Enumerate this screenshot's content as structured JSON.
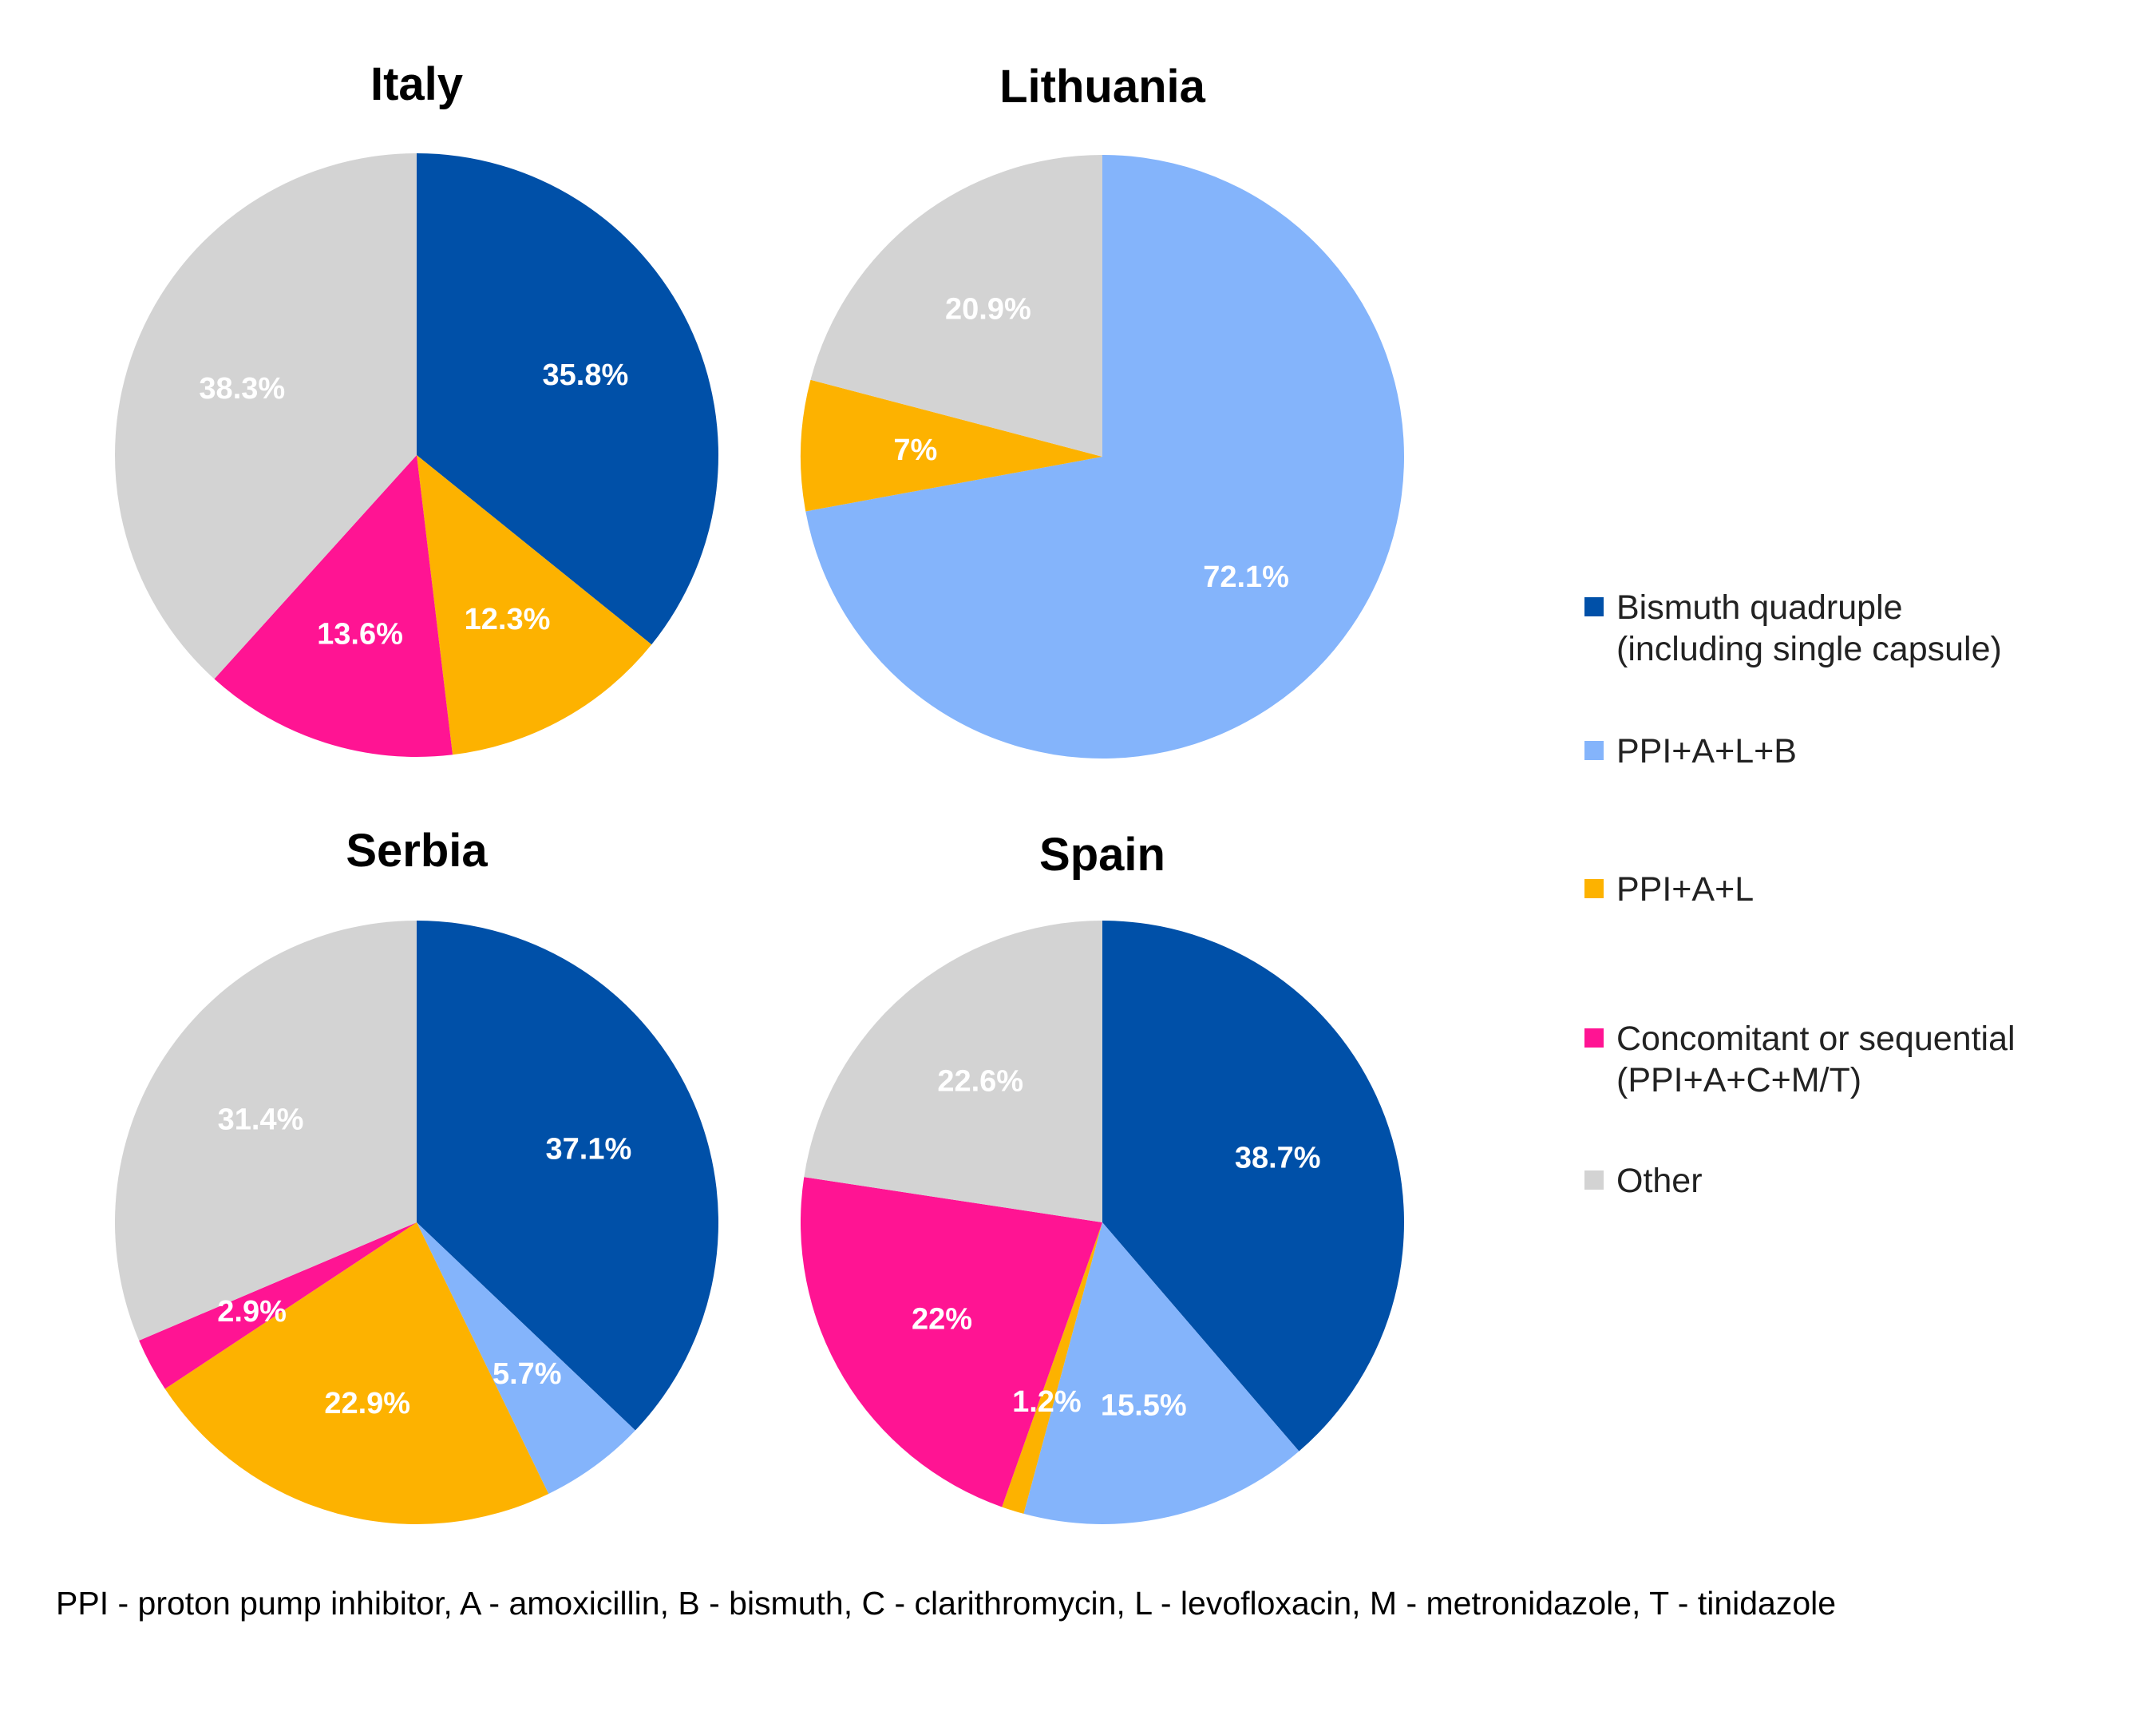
{
  "colors": {
    "Bismuth quadruple": "#0050a8",
    "PPI+A+L+B": "#84b4fb",
    "PPI+A+L": "#fdb200",
    "Concomitant or sequential": "#ff1493",
    "Other": "#d3d3d3"
  },
  "chart_data": [
    {
      "type": "pie",
      "title": "Italy",
      "slices": [
        {
          "category": "Bismuth quadruple",
          "value": 35.8,
          "label": "35.8%"
        },
        {
          "category": "PPI+A+L",
          "value": 12.3,
          "label": "12.3%"
        },
        {
          "category": "Concomitant or sequential",
          "value": 13.6,
          "label": "13.6%"
        },
        {
          "category": "Other",
          "value": 38.3,
          "label": "38.3%"
        }
      ]
    },
    {
      "type": "pie",
      "title": "Lithuania",
      "slices": [
        {
          "category": "PPI+A+L+B",
          "value": 72.1,
          "label": "72.1%"
        },
        {
          "category": "PPI+A+L",
          "value": 7,
          "label": "7%"
        },
        {
          "category": "Other",
          "value": 20.9,
          "label": "20.9%"
        }
      ]
    },
    {
      "type": "pie",
      "title": "Serbia",
      "slices": [
        {
          "category": "Bismuth quadruple",
          "value": 37.1,
          "label": "37.1%"
        },
        {
          "category": "PPI+A+L+B",
          "value": 5.7,
          "label": "5.7%"
        },
        {
          "category": "PPI+A+L",
          "value": 22.9,
          "label": "22.9%"
        },
        {
          "category": "Concomitant or sequential",
          "value": 2.9,
          "label": "2.9%"
        },
        {
          "category": "Other",
          "value": 31.4,
          "label": "31.4%"
        }
      ]
    },
    {
      "type": "pie",
      "title": "Spain",
      "slices": [
        {
          "category": "Bismuth quadruple",
          "value": 38.7,
          "label": "38.7%"
        },
        {
          "category": "PPI+A+L+B",
          "value": 15.5,
          "label": "15.5%"
        },
        {
          "category": "PPI+A+L",
          "value": 1.2,
          "label": "1.2%"
        },
        {
          "category": "Concomitant or sequential",
          "value": 22,
          "label": "22%"
        },
        {
          "category": "Other",
          "value": 22.6,
          "label": "22.6%"
        }
      ]
    }
  ],
  "legend": [
    {
      "category": "Bismuth quadruple",
      "lines": [
        "Bismuth quadruple",
        "(including single capsule)"
      ]
    },
    {
      "category": "PPI+A+L+B",
      "lines": [
        "PPI+A+L+B"
      ]
    },
    {
      "category": "PPI+A+L",
      "lines": [
        "PPI+A+L"
      ]
    },
    {
      "category": "Concomitant or sequential",
      "lines": [
        "Concomitant or sequential",
        "(PPI+A+C+M/T)"
      ]
    },
    {
      "category": "Other",
      "lines": [
        "Other"
      ]
    }
  ],
  "footnote": "PPI - proton pump inhibitor, A - amoxicillin, B - bismuth, C - clarithromycin, L - levofloxacin, M - metronidazole, T - tinidazole"
}
